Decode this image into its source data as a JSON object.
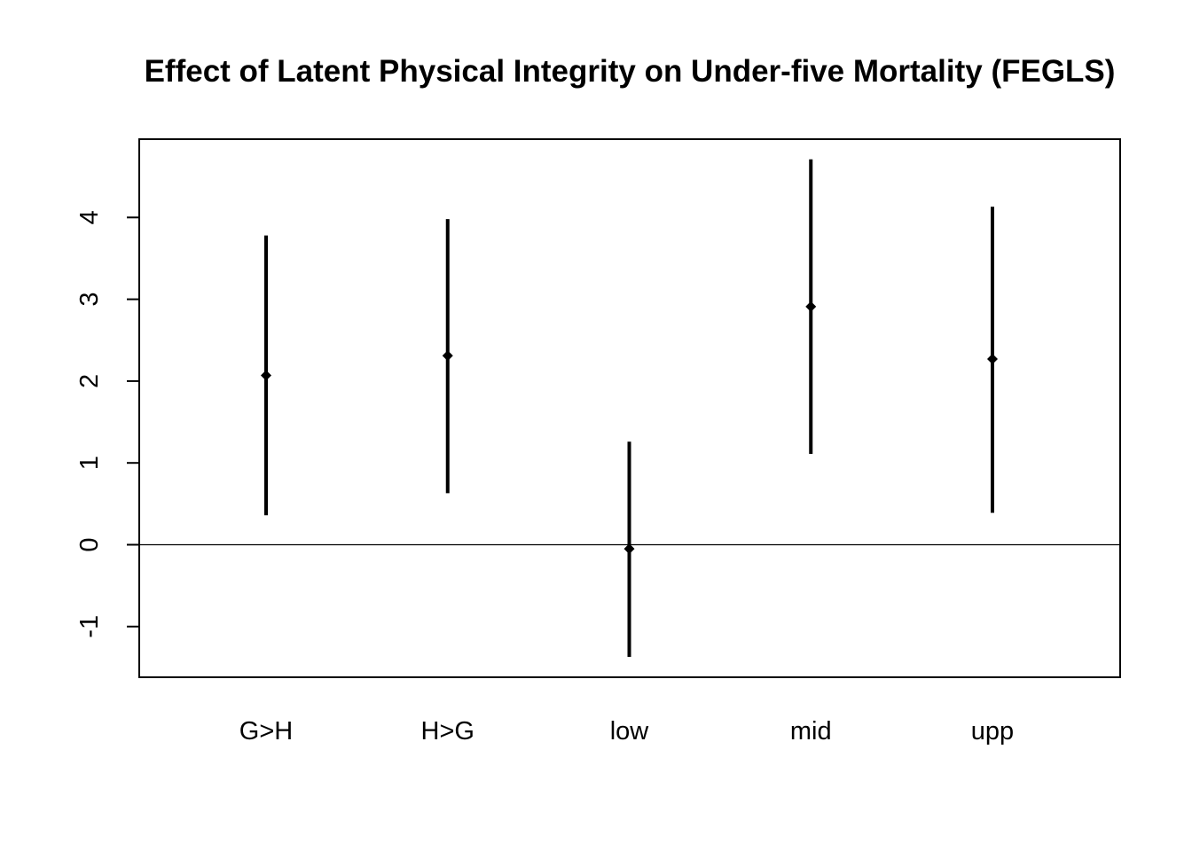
{
  "chart_data": {
    "type": "errorbar",
    "title": "Effect of Latent Physical Integrity on Under-five Mortality (FEGLS)",
    "xlabel": "",
    "ylabel": "",
    "categories": [
      "G>H",
      "H>G",
      "low",
      "mid",
      "upp"
    ],
    "series": [
      {
        "estimate": [
          2.07,
          2.31,
          -0.05,
          2.91,
          2.27
        ],
        "lower": [
          0.36,
          0.63,
          -1.37,
          1.11,
          0.39
        ],
        "upper": [
          3.78,
          3.98,
          1.26,
          4.71,
          4.13
        ]
      }
    ],
    "yticks": [
      -1,
      0,
      1,
      2,
      3,
      4
    ],
    "ylim": [
      -1.6,
      4.9
    ],
    "reference_line": 0,
    "grid": false,
    "legend": "none",
    "colors": {
      "marks": "#000000",
      "axis": "#000000",
      "background": "#ffffff"
    }
  }
}
